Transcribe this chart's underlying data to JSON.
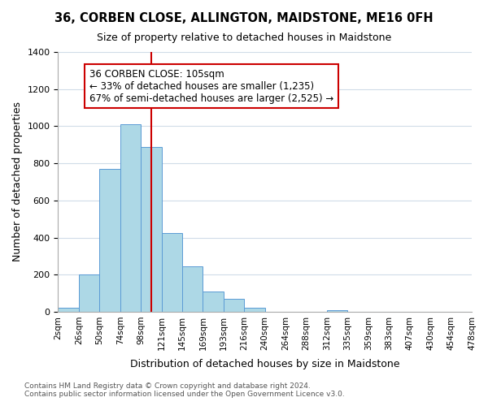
{
  "title": "36, CORBEN CLOSE, ALLINGTON, MAIDSTONE, ME16 0FH",
  "subtitle": "Size of property relative to detached houses in Maidstone",
  "xlabel": "Distribution of detached houses by size in Maidstone",
  "ylabel": "Number of detached properties",
  "bin_labels": [
    "2sqm",
    "26sqm",
    "50sqm",
    "74sqm",
    "98sqm",
    "121sqm",
    "145sqm",
    "169sqm",
    "193sqm",
    "216sqm",
    "240sqm",
    "264sqm",
    "288sqm",
    "312sqm",
    "335sqm",
    "359sqm",
    "383sqm",
    "407sqm",
    "430sqm",
    "454sqm",
    "478sqm"
  ],
  "bar_heights": [
    20,
    200,
    770,
    1010,
    890,
    425,
    245,
    110,
    70,
    20,
    0,
    0,
    0,
    10,
    0,
    0,
    0,
    0,
    0,
    0
  ],
  "bar_color": "#add8e6",
  "bar_edge_color": "#5b9bd5",
  "vline_x": 4.5,
  "vline_color": "#cc0000",
  "annotation_title": "36 CORBEN CLOSE: 105sqm",
  "annotation_line1": "← 33% of detached houses are smaller (1,235)",
  "annotation_line2": "67% of semi-detached houses are larger (2,525) →",
  "annotation_box_color": "#ffffff",
  "annotation_box_edge": "#cc0000",
  "ylim": [
    0,
    1400
  ],
  "yticks": [
    0,
    200,
    400,
    600,
    800,
    1000,
    1200,
    1400
  ],
  "footer_line1": "Contains HM Land Registry data © Crown copyright and database right 2024.",
  "footer_line2": "Contains public sector information licensed under the Open Government Licence v3.0.",
  "bg_color": "#ffffff",
  "grid_color": "#d0dce8"
}
